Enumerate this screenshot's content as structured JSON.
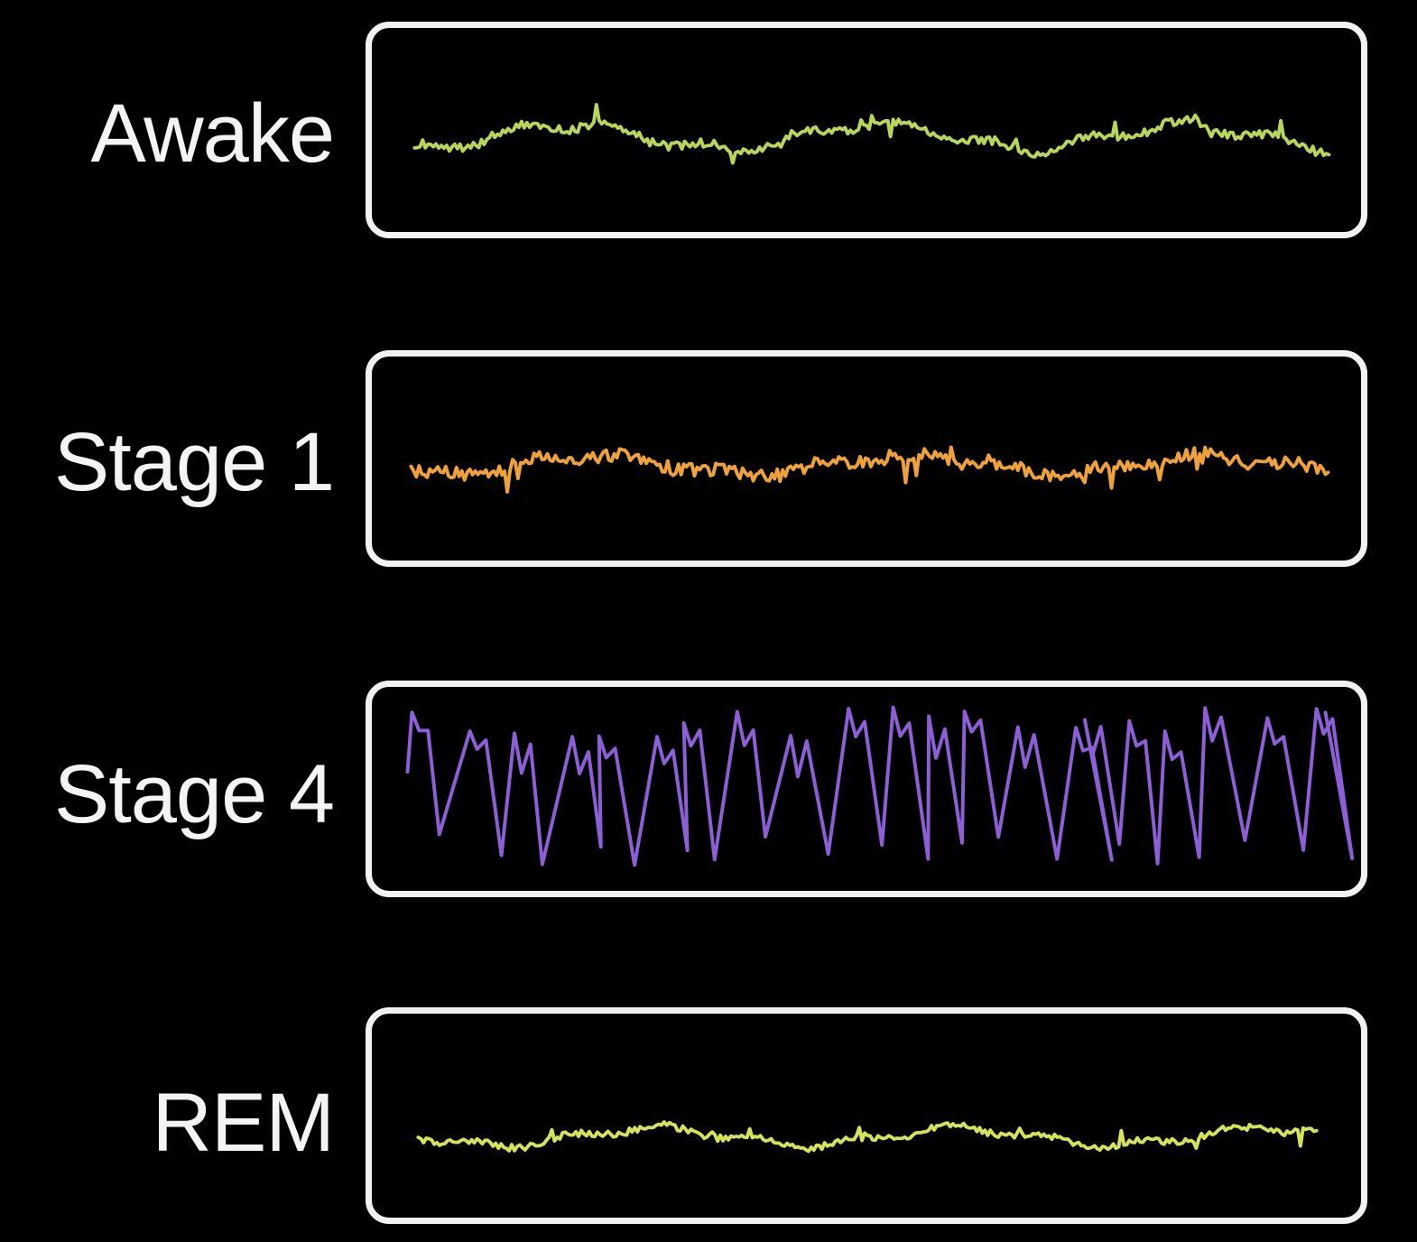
{
  "rows": [
    {
      "id": "awake",
      "label": "Awake",
      "color": "#b8d65a",
      "amplitude": "low",
      "frequency": "high"
    },
    {
      "id": "stage1",
      "label": "Stage 1",
      "color": "#f0a23a",
      "amplitude": "low",
      "frequency": "mixed"
    },
    {
      "id": "stage4",
      "label": "Stage 4",
      "color": "#8c5fd6",
      "amplitude": "high",
      "frequency": "low"
    },
    {
      "id": "rem",
      "label": "REM",
      "color": "#d6e35a",
      "amplitude": "low",
      "frequency": "high"
    }
  ]
}
